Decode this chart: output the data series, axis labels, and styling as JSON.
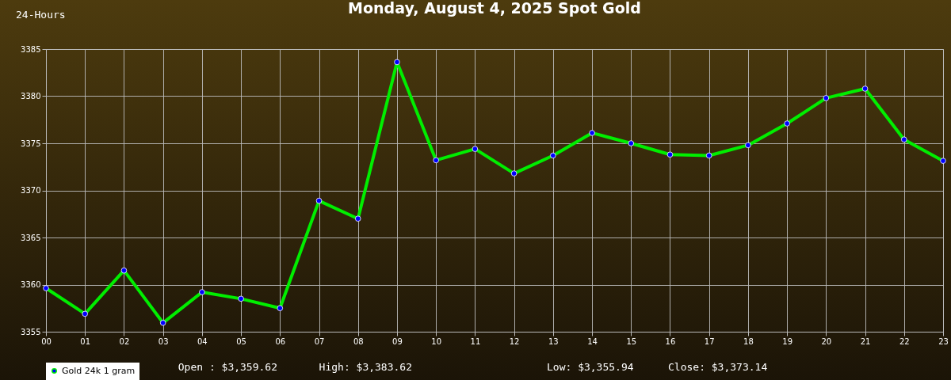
{
  "chart_data": {
    "type": "line",
    "title": "Monday, August 4, 2025 Spot Gold",
    "annotations": [
      "24-Hours",
      "Open : $3,359.62",
      "High: $3,383.62",
      "Low: $3,355.94",
      "Close: $3,373.14"
    ],
    "categories": [
      "00",
      "01",
      "02",
      "03",
      "04",
      "05",
      "06",
      "07",
      "08",
      "09",
      "10",
      "11",
      "12",
      "13",
      "14",
      "15",
      "16",
      "17",
      "18",
      "19",
      "20",
      "21",
      "22",
      "23"
    ],
    "series": [
      {
        "name": "Gold 24k 1 gram",
        "color": "#00ee00",
        "values": [
          3359.62,
          3356.9,
          3361.5,
          3355.94,
          3359.2,
          3358.5,
          3357.5,
          3368.9,
          3367.0,
          3383.62,
          3373.2,
          3374.4,
          3371.8,
          3373.7,
          3376.1,
          3375.0,
          3373.8,
          3373.7,
          3374.8,
          3377.1,
          3379.8,
          3380.8,
          3375.4,
          3373.14
        ]
      }
    ],
    "ylim": [
      3355,
      3385
    ],
    "yticks": [
      3355,
      3360,
      3365,
      3370,
      3375,
      3380,
      3385
    ],
    "grid": true,
    "legend": "bottom",
    "marker": "circle",
    "line_style": "solid"
  }
}
